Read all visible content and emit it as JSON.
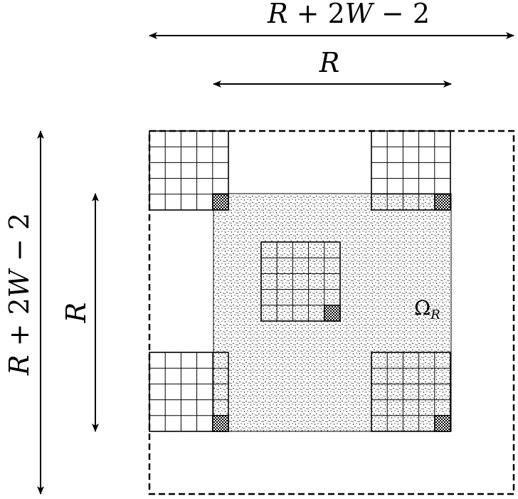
{
  "labels": {
    "outer_width_R": "R",
    "outer_width_plus": " + 2",
    "outer_width_W": "W",
    "outer_width_minus": " − 2",
    "inner_width": "R",
    "outer_height_R": "R",
    "outer_height_plus": " + 2",
    "outer_height_W": "W",
    "outer_height_minus": " − 2",
    "inner_height": "R",
    "region_symbol": "Ω",
    "region_subscript": "R"
  },
  "grid": {
    "cells_per_side": 5
  },
  "colors": {
    "stroke": "#000000",
    "region_fill": "#ffffff",
    "dots": "#000000",
    "corner_cell": "#000000"
  }
}
